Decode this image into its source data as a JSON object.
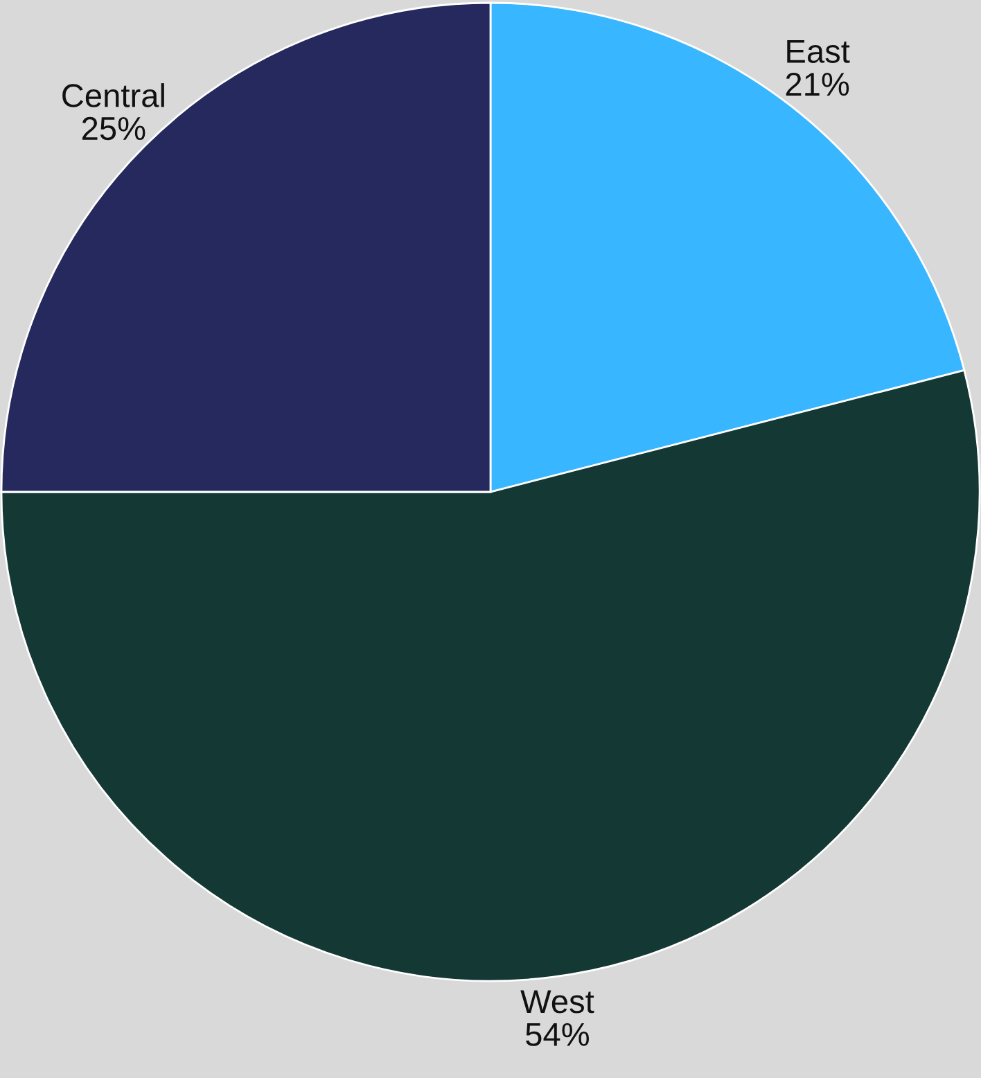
{
  "chart_data": {
    "type": "pie",
    "categories": [
      "East",
      "West",
      "Central"
    ],
    "values": [
      21,
      54,
      25
    ],
    "colors": [
      "#38b6ff",
      "#143833",
      "#25295e"
    ],
    "value_labels": [
      "21%",
      "54%",
      "25%"
    ]
  }
}
